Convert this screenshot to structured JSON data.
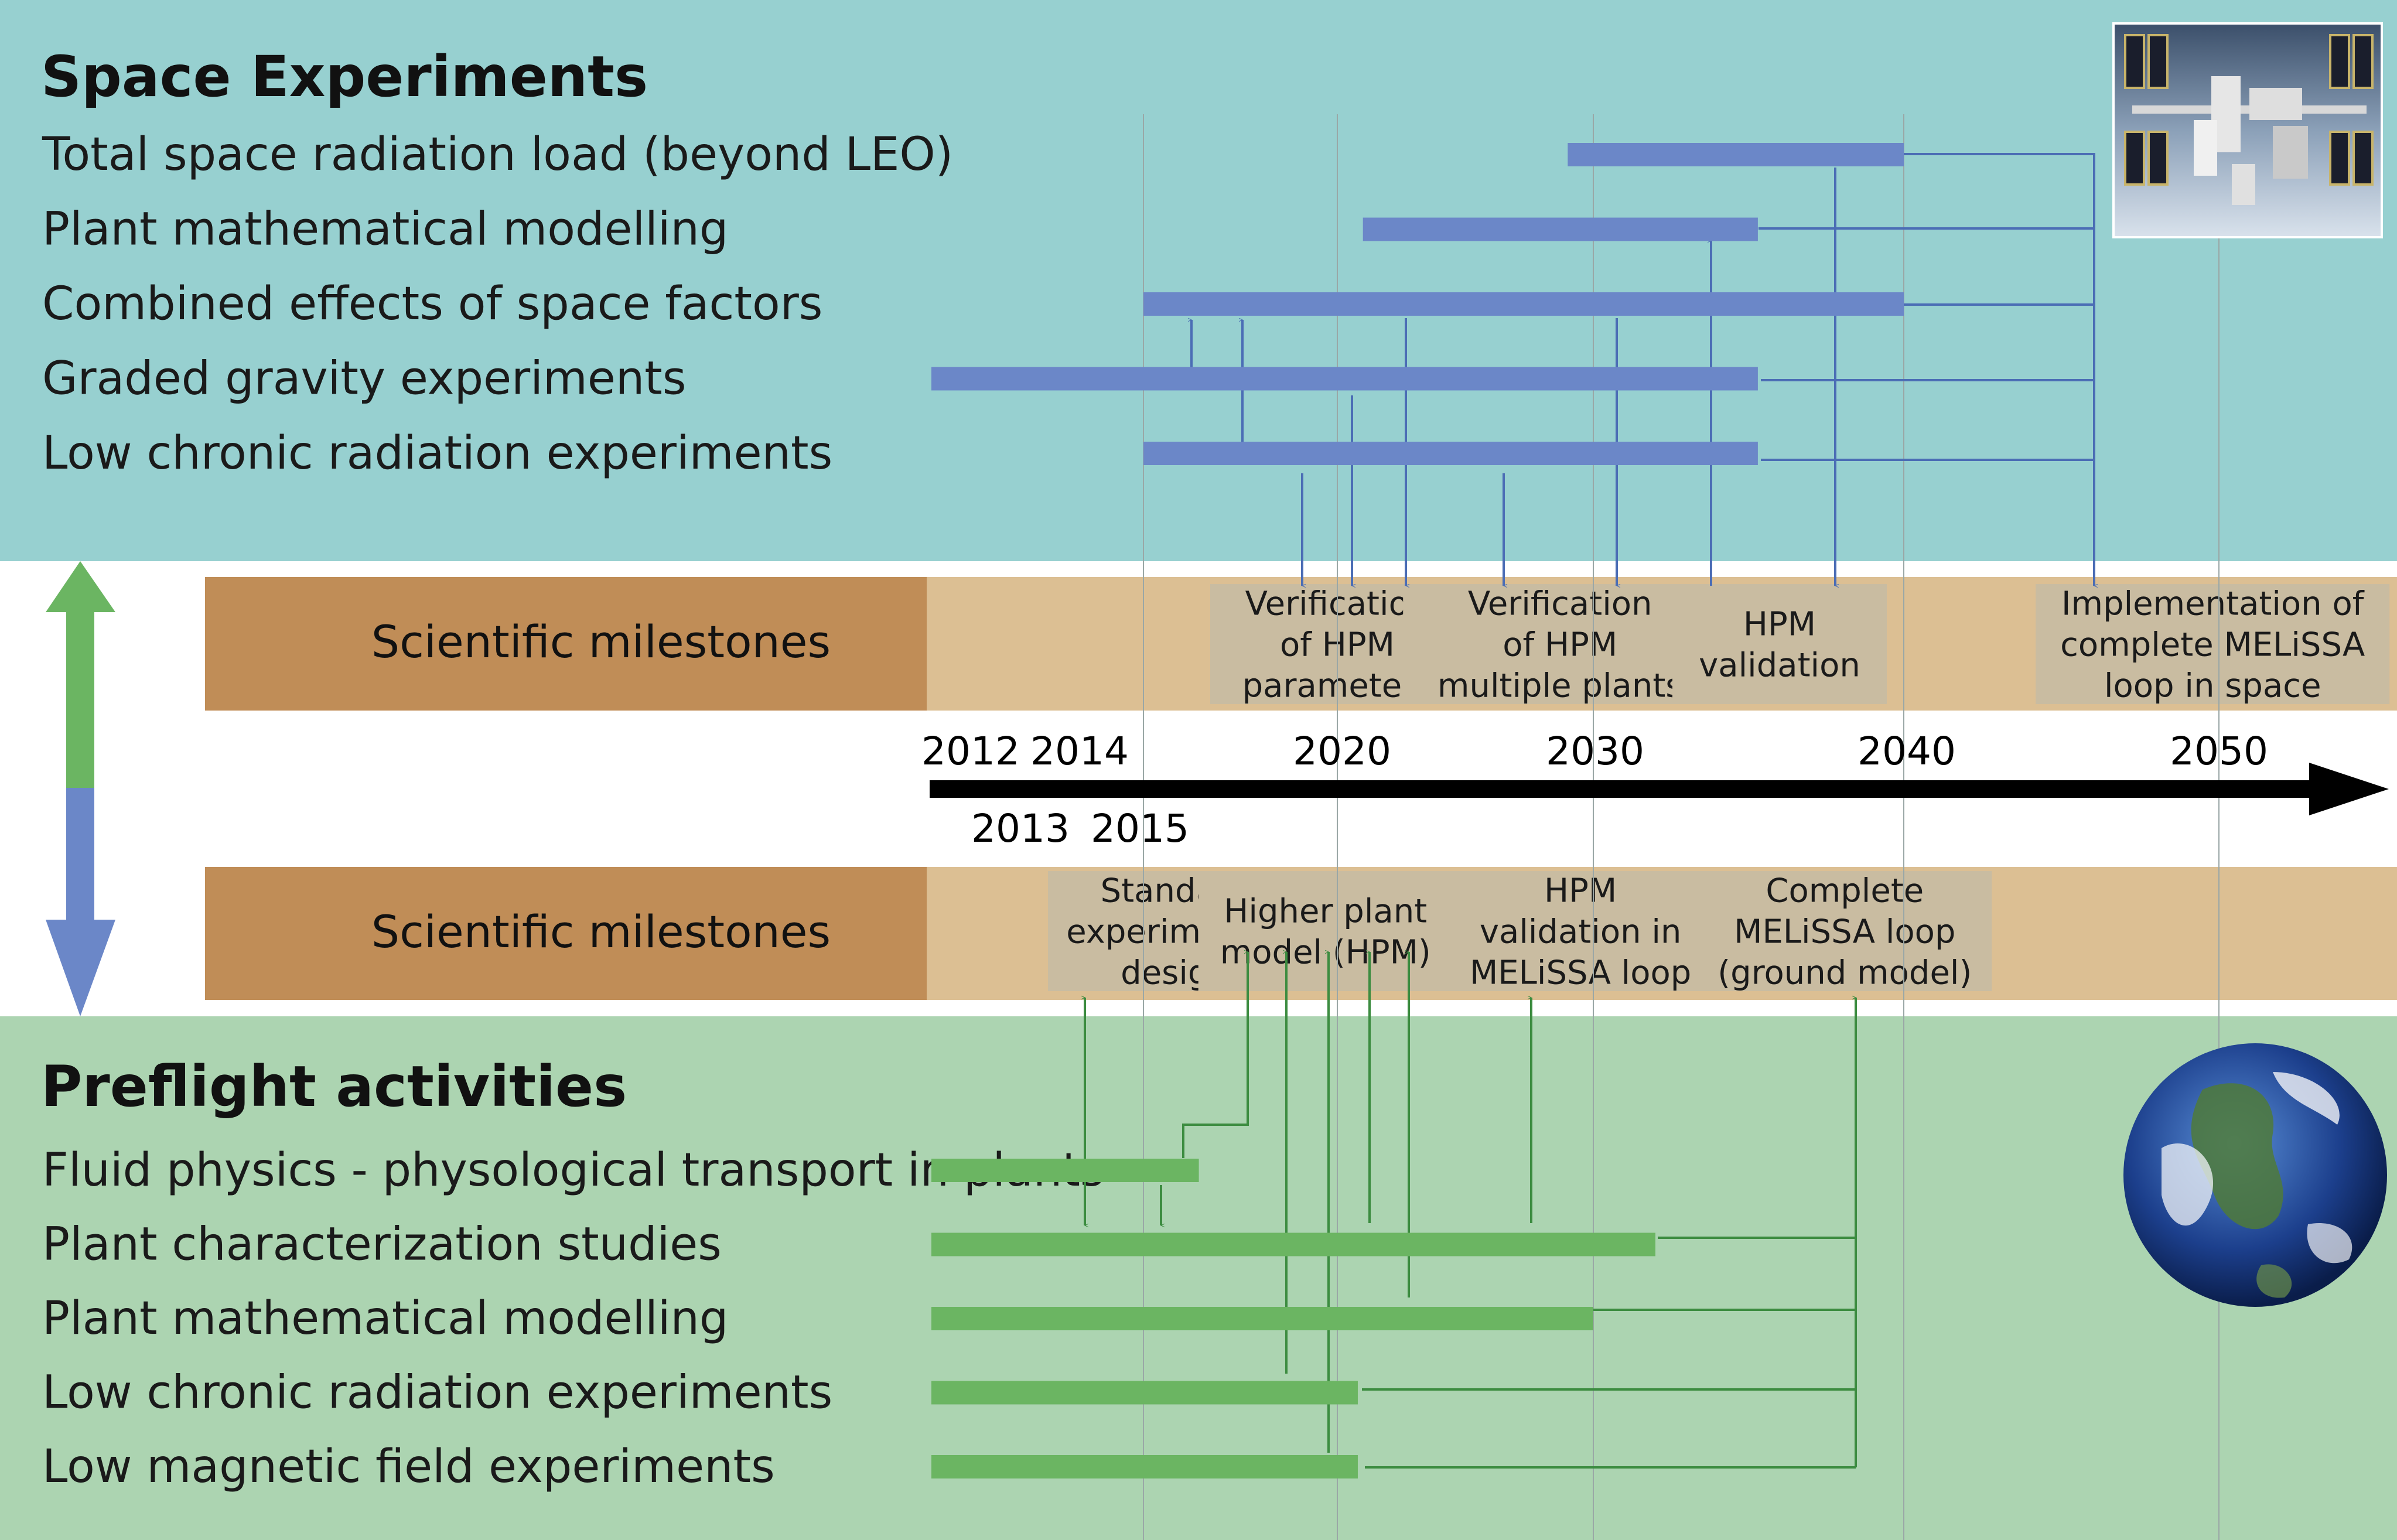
{
  "colors": {
    "space_bg": "#97d0d0",
    "preflight_bg": "#acd4b1",
    "band_label_bg": "#c08d57",
    "band_bg": "#dcbf93",
    "milestone_box": "#c9bca1",
    "space_bar": "#6b87c8",
    "space_line": "#4b6db5",
    "preflight_bar": "#6bb562",
    "preflight_line": "#3c8c40",
    "axis": "#000000",
    "gridline": "#9aa7a6"
  },
  "space": {
    "title": "Space Experiments",
    "photo_icon": "space-station-photo",
    "rows": [
      {
        "label": "Total space radiation load (beyond LEO)",
        "start": 2029,
        "end": 2040
      },
      {
        "label": "Plant mathematical modelling",
        "start": 2021,
        "end": 2035.3
      },
      {
        "label": "Combined effects of space factors",
        "start": 2015.1,
        "end": 2040
      },
      {
        "label": "Graded gravity experiments",
        "start": 2012,
        "end": 2035.3
      },
      {
        "label": "Low chronic radiation experiments",
        "start": 2015.1,
        "end": 2035.3
      }
    ]
  },
  "top_band": {
    "label": "Scientific milestones",
    "milestones": [
      {
        "lines": [
          "Verification",
          "of HPM",
          "parameters"
        ],
        "center": 2020
      },
      {
        "lines": [
          "Verification",
          "of HPM",
          "multiple plants"
        ],
        "center": 2028.7
      },
      {
        "lines": [
          "HPM",
          "validation"
        ],
        "center": 2036
      },
      {
        "lines": [
          "Implementation of",
          "complete MELiSSA",
          "loop in space"
        ],
        "center": 2049.8
      }
    ]
  },
  "timeline": {
    "years_above": [
      "2012",
      "2014",
      "2020",
      "2030",
      "2040",
      "2050"
    ],
    "years_below": [
      "2013",
      "2015"
    ]
  },
  "bottom_band": {
    "label": "Scientific milestones",
    "milestones": [
      {
        "lines": [
          "Standard",
          "experimental",
          "design"
        ],
        "center": 2015.9
      },
      {
        "lines": [
          "Higher plant",
          "model (HPM)"
        ],
        "center": 2019.7
      },
      {
        "lines": [
          "HPM",
          "validation in",
          "MELiSSA loop"
        ],
        "center": 2029.5
      },
      {
        "lines": [
          "Complete",
          "MELiSSA loop",
          "(ground model)"
        ],
        "center": 2038.1
      }
    ]
  },
  "preflight": {
    "title": "Preflight activities",
    "photo_icon": "earth-globe-photo",
    "rows": [
      {
        "label": "Fluid physics - physological transport in plants",
        "start": 2012,
        "end": 2016.5
      },
      {
        "label": "Plant characterization studies",
        "start": 2012,
        "end": 2032
      },
      {
        "label": "Plant mathematical modelling",
        "start": 2012,
        "end": 2030
      },
      {
        "label": "Low chronic radiation experiments",
        "start": 2012,
        "end": 2020.8
      },
      {
        "label": "Low magnetic field experiments",
        "start": 2012,
        "end": 2020.8
      }
    ]
  },
  "side_arrow": {
    "icon": "double-arrow-icon"
  }
}
